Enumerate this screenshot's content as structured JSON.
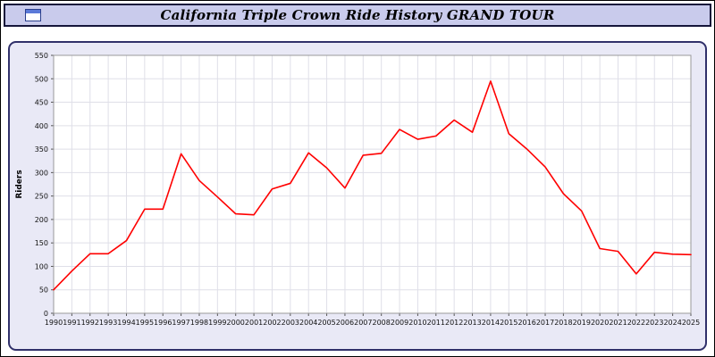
{
  "window": {
    "title": "California Triple Crown Ride History GRAND TOUR"
  },
  "chart_data": {
    "type": "line",
    "title": "California Triple Crown Ride History GRAND TOUR",
    "xlabel": "",
    "ylabel": "Riders",
    "ylim": [
      0,
      550
    ],
    "ytick_step": 50,
    "grid": true,
    "legend_position": "none",
    "line_color": "#ff0000",
    "plot_bg": "#ffffff",
    "panel_bg": "#e9e9f6",
    "x": [
      1990,
      1991,
      1992,
      1993,
      1994,
      1995,
      1996,
      1997,
      1998,
      1999,
      2000,
      2001,
      2002,
      2003,
      2004,
      2005,
      2006,
      2007,
      2008,
      2009,
      2010,
      2011,
      2012,
      2013,
      2014,
      2015,
      2016,
      2017,
      2018,
      2019,
      2020,
      2021,
      2022,
      2023,
      2024,
      2025
    ],
    "series": [
      {
        "name": "Riders",
        "values": [
          50,
          90,
          127,
          127,
          155,
          222,
          222,
          340,
          283,
          248,
          212,
          210,
          265,
          277,
          342,
          310,
          267,
          337,
          341,
          392,
          371,
          378,
          412,
          386,
          495,
          383,
          350,
          312,
          255,
          218,
          138,
          132,
          84,
          130,
          126,
          125
        ]
      }
    ]
  }
}
